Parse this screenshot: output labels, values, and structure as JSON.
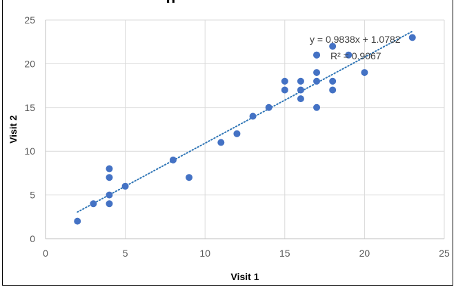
{
  "chart_data": {
    "type": "scatter",
    "title": "g",
    "xlabel": "Visit 1",
    "ylabel": "Visit 2",
    "xlim": [
      0,
      25
    ],
    "ylim": [
      0,
      25
    ],
    "xticks": [
      "0",
      "5",
      "10",
      "15",
      "20",
      "25"
    ],
    "yticks": [
      "0",
      "5",
      "10",
      "15",
      "20",
      "25"
    ],
    "grid": true,
    "marker_color": "#4472C4",
    "trendline_color": "#2E75B6",
    "trendline": {
      "slope": 0.9838,
      "intercept": 1.0782,
      "x_range": [
        2,
        23
      ]
    },
    "equation": "y = 0.9838x + 1.0782",
    "r_squared": "R² = 0.9067",
    "points": [
      {
        "x": 2,
        "y": 2
      },
      {
        "x": 3,
        "y": 4
      },
      {
        "x": 4,
        "y": 8
      },
      {
        "x": 4,
        "y": 7
      },
      {
        "x": 4,
        "y": 5
      },
      {
        "x": 4,
        "y": 4
      },
      {
        "x": 5,
        "y": 6
      },
      {
        "x": 8,
        "y": 9
      },
      {
        "x": 9,
        "y": 7
      },
      {
        "x": 11,
        "y": 11
      },
      {
        "x": 12,
        "y": 12
      },
      {
        "x": 13,
        "y": 14
      },
      {
        "x": 14,
        "y": 15
      },
      {
        "x": 15,
        "y": 18
      },
      {
        "x": 15,
        "y": 17
      },
      {
        "x": 16,
        "y": 18
      },
      {
        "x": 16,
        "y": 17
      },
      {
        "x": 16,
        "y": 16
      },
      {
        "x": 17,
        "y": 21
      },
      {
        "x": 17,
        "y": 19
      },
      {
        "x": 17,
        "y": 18
      },
      {
        "x": 17,
        "y": 15
      },
      {
        "x": 18,
        "y": 22
      },
      {
        "x": 18,
        "y": 18
      },
      {
        "x": 18,
        "y": 17
      },
      {
        "x": 19,
        "y": 21
      },
      {
        "x": 20,
        "y": 19
      },
      {
        "x": 23,
        "y": 23
      }
    ]
  }
}
